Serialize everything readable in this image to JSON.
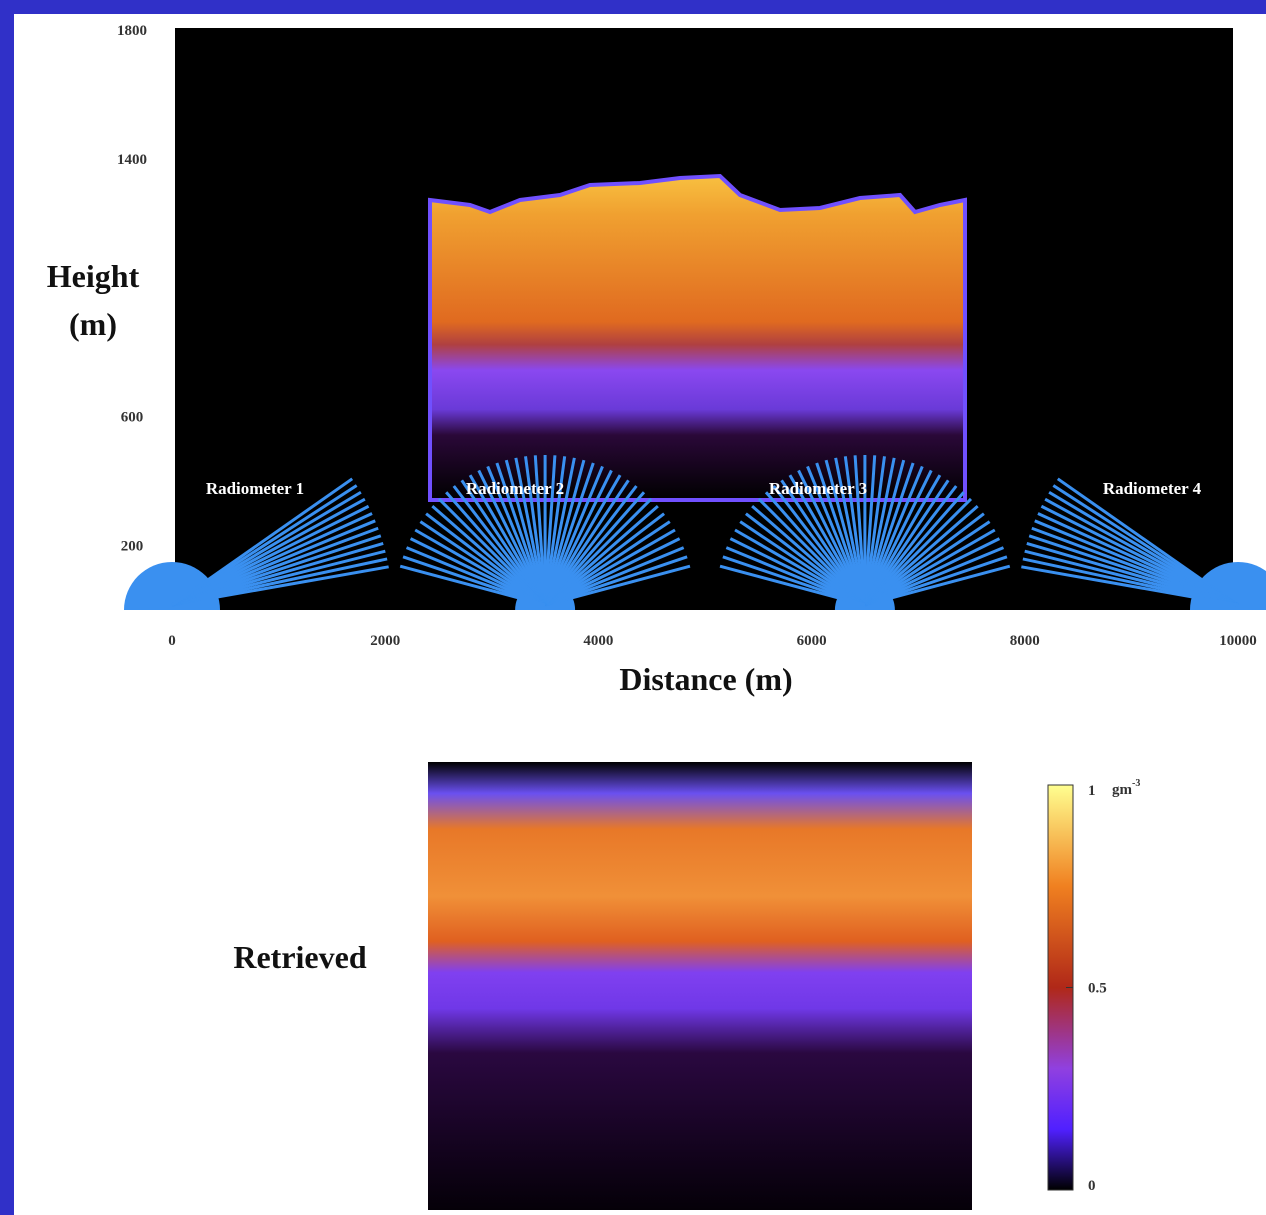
{
  "top_plot": {
    "y_label_lines": [
      "Height",
      "(m)"
    ],
    "x_label": "Distance (m)",
    "ylim": [
      0,
      1800
    ],
    "yticks": [
      1800,
      1400,
      600,
      200
    ],
    "xlim": [
      0,
      10000
    ],
    "xticks": [
      0,
      2000,
      4000,
      6000,
      8000,
      10000
    ],
    "radiometers": [
      "Radiometer 1",
      "Radiometer 2",
      "Radiometer 3",
      "Radiometer 4"
    ]
  },
  "bottom_plot": {
    "label": "Retrieved"
  },
  "colorbar": {
    "lim": [
      0,
      1
    ],
    "ticks": [
      1,
      0.5,
      0
    ],
    "unit": "gm",
    "unit_exponent": "-3"
  }
}
